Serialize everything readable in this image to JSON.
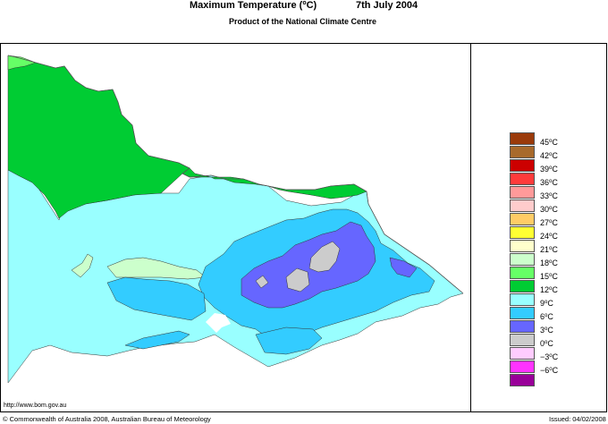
{
  "header": {
    "title_pre": "Maximum Temperature (",
    "title_sup": "o",
    "title_post": "C)",
    "date": "7th July 2004",
    "subtitle": "Product of the National Climate Centre"
  },
  "legend": {
    "unit": "C",
    "unit_sup": "o",
    "items": [
      {
        "value": "45",
        "color": "#9a3a0a"
      },
      {
        "value": "42",
        "color": "#a86a2c"
      },
      {
        "value": "39",
        "color": "#cc0000"
      },
      {
        "value": "36",
        "color": "#ff3b3b"
      },
      {
        "value": "33",
        "color": "#ff9a9a"
      },
      {
        "value": "30",
        "color": "#ffcccc"
      },
      {
        "value": "27",
        "color": "#ffcc66"
      },
      {
        "value": "24",
        "color": "#ffff33"
      },
      {
        "value": "21",
        "color": "#ffffcc"
      },
      {
        "value": "18",
        "color": "#ccffcc"
      },
      {
        "value": "15",
        "color": "#66ff66"
      },
      {
        "value": "12",
        "color": "#00cc33"
      },
      {
        "value": "9",
        "color": "#99ffff"
      },
      {
        "value": "6",
        "color": "#33ccff"
      },
      {
        "value": "3",
        "color": "#6666ff"
      },
      {
        "value": "0",
        "color": "#cccccc"
      },
      {
        "value": "−3",
        "color": "#ffccff"
      },
      {
        "value": "−6",
        "color": "#ff33ff"
      },
      {
        "value": "",
        "color": "#990099"
      }
    ]
  },
  "footer": {
    "url": "http://www.bom.gov.au",
    "copyright": "© Commonwealth of Australia 2008, Australian Bureau of Meteorology",
    "issued": "Issued: 04/02/2008"
  },
  "map_colors": {
    "band_12_15": "#00cc33",
    "band_15_18": "#66ff66",
    "band_9_12": "#99ffff",
    "band_6_9": "#33ccff",
    "band_3_6": "#6666ff",
    "band_0_3": "#cccccc",
    "band_18_21": "#ccffcc"
  }
}
